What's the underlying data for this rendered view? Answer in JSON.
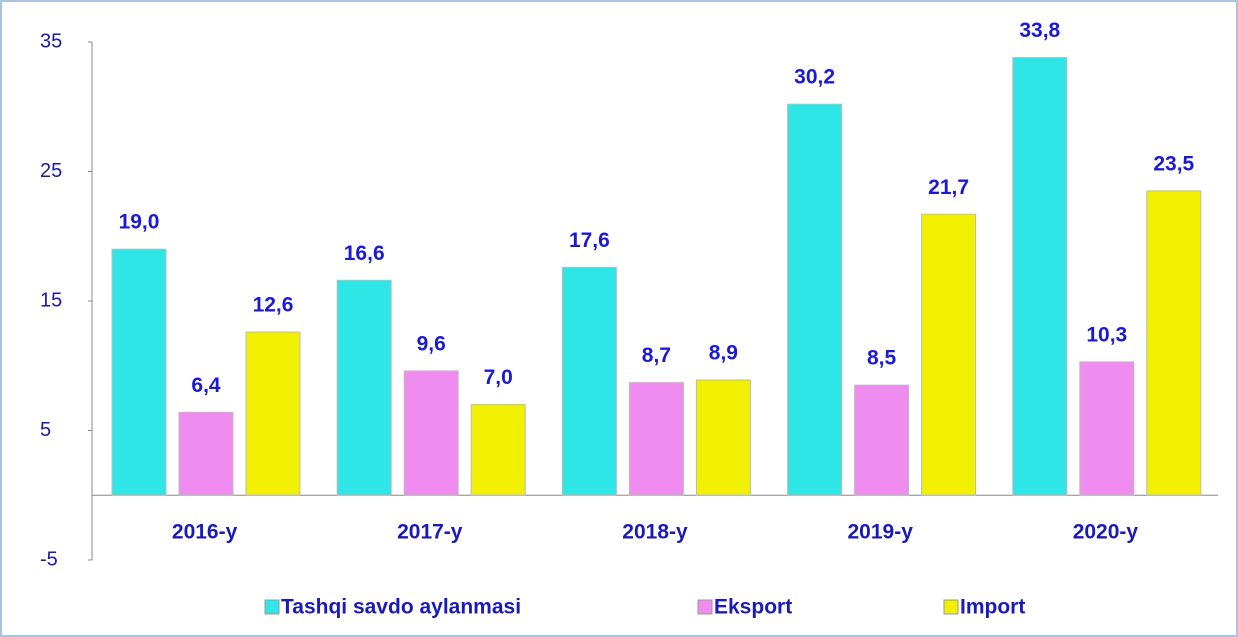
{
  "chart_data": {
    "type": "bar",
    "categories": [
      "2016-y",
      "2017-y",
      "2018-y",
      "2019-y",
      "2020-y"
    ],
    "series": [
      {
        "name": "Tashqi savdo aylanmasi",
        "color": "#2ee6e6",
        "values": [
          19.0,
          16.6,
          17.6,
          30.2,
          33.8
        ],
        "value_labels": [
          "19,0",
          "16,6",
          "17,6",
          "30,2",
          "33,8"
        ]
      },
      {
        "name": "Eksport",
        "color": "#f08cf0",
        "values": [
          6.4,
          9.6,
          8.7,
          8.5,
          10.3
        ],
        "value_labels": [
          "6,4",
          "9,6",
          "8,7",
          "8,5",
          "10,3"
        ]
      },
      {
        "name": "Import",
        "color": "#f0f000",
        "values": [
          12.6,
          7.0,
          8.9,
          21.7,
          23.5
        ],
        "value_labels": [
          "12,6",
          "7,0",
          "8,9",
          "21,7",
          "23,5"
        ]
      }
    ],
    "ylim": [
      -5,
      35
    ],
    "yticks": [
      -5,
      5,
      15,
      25,
      35
    ],
    "grid": false,
    "legend": "bottom"
  }
}
